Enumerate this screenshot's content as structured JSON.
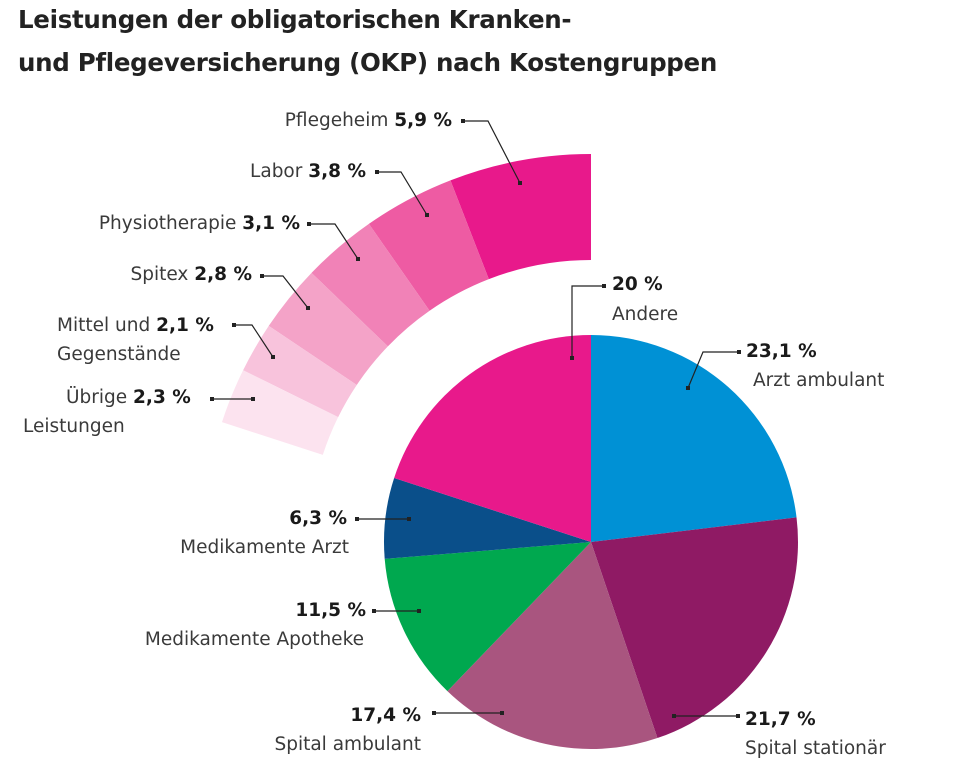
{
  "title_line1": "Leistungen der obligatorischen Kranken-",
  "title_line2": "und Pflegeversicherung (OKP) nach Kostengruppen",
  "chart_data": {
    "type": "pie",
    "title": "Leistungen der obligatorischen Kranken- und Pflegeversicherung (OKP) nach Kostengruppen",
    "unit": "%",
    "slices": [
      {
        "name": "Arzt ambulant",
        "value": 23.1,
        "label": "23,1 %",
        "color": "#0091d5"
      },
      {
        "name": "Spital stationär",
        "value": 21.7,
        "label": "21,7 %",
        "color": "#8f1a64"
      },
      {
        "name": "Spital ambulant",
        "value": 17.4,
        "label": "17,4 %",
        "color": "#a9557f"
      },
      {
        "name": "Medikamente Apotheke",
        "value": 11.5,
        "label": "11,5 %",
        "color": "#00a84f"
      },
      {
        "name": "Medikamente Arzt",
        "value": 6.3,
        "label": "6,3 %",
        "color": "#0a4f8a"
      },
      {
        "name": "Andere",
        "value": 20,
        "label": "20 %",
        "color": "#e8198b"
      }
    ],
    "breakdown_of": "Andere",
    "breakdown": [
      {
        "name": "Pflegeheim",
        "value": 5.9,
        "label": "5,9 %",
        "color": "#e8198b"
      },
      {
        "name": "Labor",
        "value": 3.8,
        "label": "3,8 %",
        "color": "#ee5ba3"
      },
      {
        "name": "Physiotherapie",
        "value": 3.1,
        "label": "3,1 %",
        "color": "#f182b7"
      },
      {
        "name": "Spitex",
        "value": 2.8,
        "label": "2,8 %",
        "color": "#f4a3c8"
      },
      {
        "name": "Mittel und Gegenstände",
        "name_line1": "Mittel und",
        "name_line2": "Gegenstände",
        "value": 2.1,
        "label": "2,1 %",
        "color": "#f8c3dc"
      },
      {
        "name": "Übrige Leistungen",
        "name_line1": "Übrige",
        "name_line2": "Leistungen",
        "value": 2.3,
        "label": "2,3 %",
        "color": "#fce3ef"
      }
    ]
  }
}
